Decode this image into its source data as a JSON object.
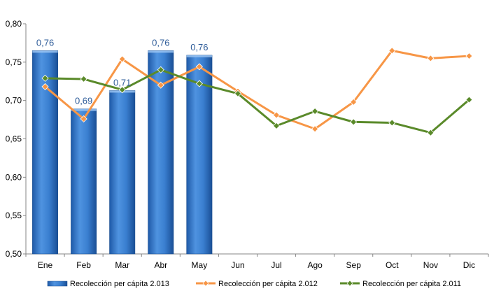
{
  "chart_data": {
    "type": "bar",
    "categories": [
      "Ene",
      "Feb",
      "Mar",
      "Abr",
      "May",
      "Jun",
      "Jul",
      "Ago",
      "Sep",
      "Oct",
      "Nov",
      "Dic"
    ],
    "ylim": [
      0.5,
      0.8
    ],
    "yticks": [
      "0,50",
      "0,55",
      "0,60",
      "0,65",
      "0,70",
      "0,75",
      "0,80"
    ],
    "ytick_values": [
      0.5,
      0.55,
      0.6,
      0.65,
      0.7,
      0.75,
      0.8
    ],
    "grid": false,
    "legend_position": "bottom",
    "series": [
      {
        "name": "Recolección per cápita 2.013",
        "kind": "bar",
        "color": "#2e74c7",
        "values": [
          0.765,
          0.689,
          0.713,
          0.765,
          0.759,
          null,
          null,
          null,
          null,
          null,
          null,
          null
        ],
        "labels": [
          "0,76",
          "0,69",
          "0,71",
          "0,76",
          "0,76",
          "",
          "",
          "",
          "",
          "",
          "",
          ""
        ]
      },
      {
        "name": "Recolección per cápita 2.012",
        "kind": "line",
        "color": "#f79646",
        "values": [
          0.718,
          0.676,
          0.754,
          0.72,
          0.744,
          0.712,
          0.681,
          0.663,
          0.698,
          0.765,
          0.755,
          0.758
        ]
      },
      {
        "name": "Recolección per cápita 2.011",
        "kind": "line",
        "color": "#5a8a2a",
        "values": [
          0.729,
          0.728,
          0.714,
          0.74,
          0.722,
          0.709,
          0.667,
          0.686,
          0.672,
          0.671,
          0.658,
          0.701
        ]
      }
    ]
  }
}
